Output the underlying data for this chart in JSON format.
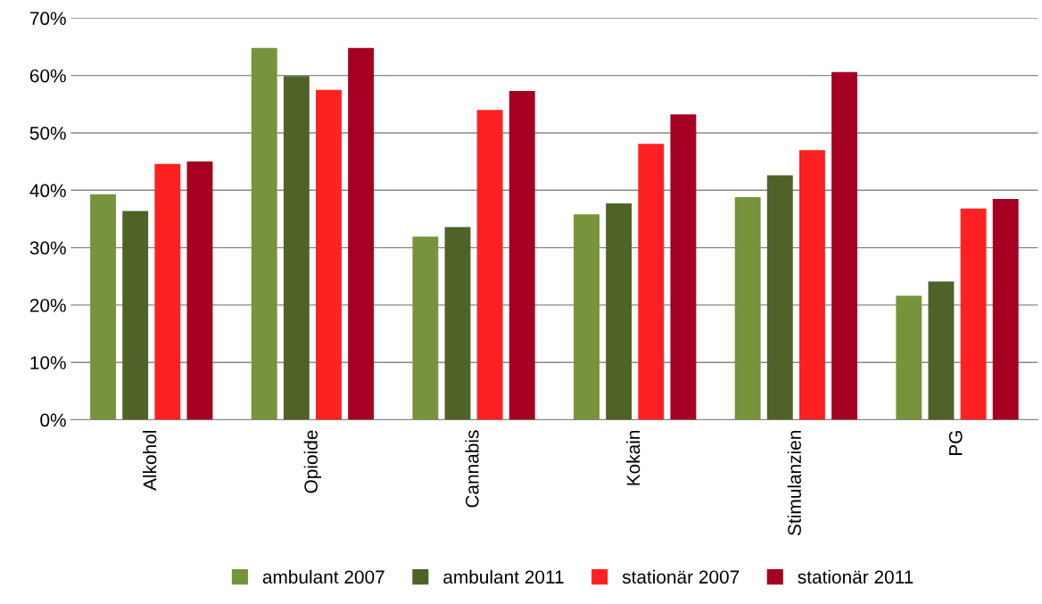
{
  "chart_data": {
    "type": "bar",
    "categories": [
      "Alkohol",
      "Opioide",
      "Cannabis",
      "Kokain",
      "Stimulanzien",
      "PG"
    ],
    "series": [
      {
        "name": "ambulant 2007",
        "color": "#77933c",
        "values": [
          39.3,
          64.8,
          31.9,
          35.8,
          38.8,
          21.6
        ]
      },
      {
        "name": "ambulant 2011",
        "color": "#4f6228",
        "values": [
          36.4,
          59.9,
          33.6,
          37.7,
          42.6,
          24.1
        ]
      },
      {
        "name": "stationär 2007",
        "color": "#ff2121",
        "values": [
          44.6,
          57.5,
          54.0,
          48.1,
          47.0,
          36.8
        ]
      },
      {
        "name": "stationär 2011",
        "color": "#a50021",
        "values": [
          45.0,
          64.8,
          57.3,
          53.2,
          60.6,
          38.5
        ]
      }
    ],
    "ylim": [
      0,
      70
    ],
    "yticks": [
      {
        "value": 0,
        "label": "0%"
      },
      {
        "value": 10,
        "label": "10%"
      },
      {
        "value": 20,
        "label": "20%"
      },
      {
        "value": 30,
        "label": "30%"
      },
      {
        "value": 40,
        "label": "40%"
      },
      {
        "value": 50,
        "label": "50%"
      },
      {
        "value": 60,
        "label": "60%"
      },
      {
        "value": 70,
        "label": "70%"
      }
    ],
    "grid": "y",
    "legend": "bottom"
  }
}
